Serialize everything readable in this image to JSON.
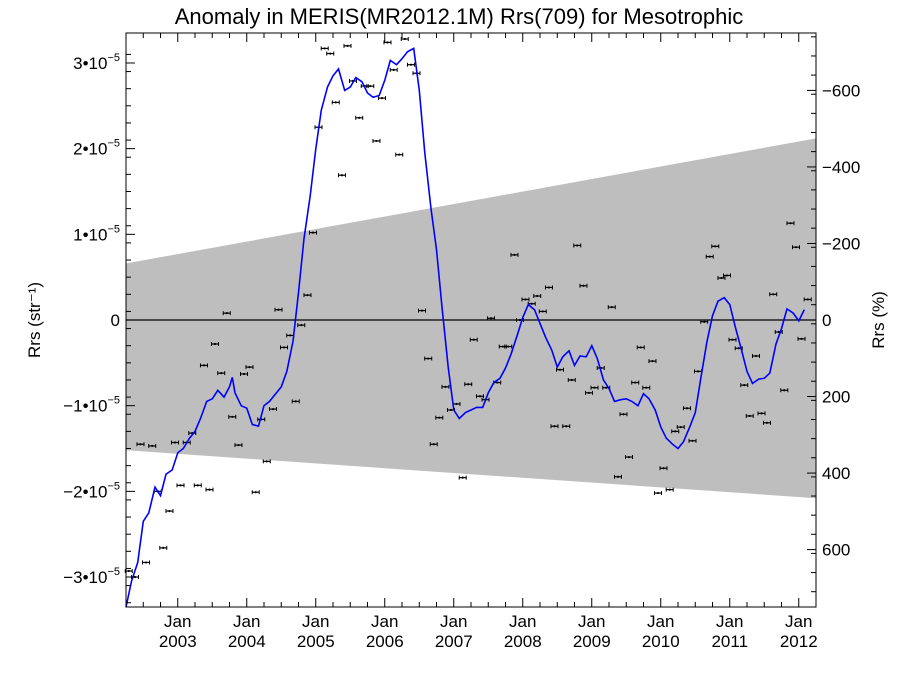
{
  "chart_data": {
    "type": "line",
    "title": "Anomaly in MERIS(MR2012.1M) Rrs(709) for Mesotrophic",
    "ylabel_left": "Rrs (str⁻¹)",
    "ylabel_right": "Rrs (%)",
    "x_range": [
      2002.25,
      2012.25
    ],
    "y_range": [
      -3.35e-05,
      3.35e-05
    ],
    "y_right_range": [
      750,
      -750
    ],
    "y_ticks": [
      {
        "value": -3e-05,
        "mant": "−3",
        "exp": "−5"
      },
      {
        "value": -2e-05,
        "mant": "−2",
        "exp": "−5"
      },
      {
        "value": -1e-05,
        "mant": "−1",
        "exp": "−5"
      },
      {
        "value": 0,
        "mant": "0",
        "exp": ""
      },
      {
        "value": 1e-05,
        "mant": "1",
        "exp": "−5"
      },
      {
        "value": 2e-05,
        "mant": "2",
        "exp": "−5"
      },
      {
        "value": 3e-05,
        "mant": "3",
        "exp": "−5"
      }
    ],
    "y_right_ticks": [
      {
        "value": 600,
        "label": "600"
      },
      {
        "value": 400,
        "label": "400"
      },
      {
        "value": 200,
        "label": "200"
      },
      {
        "value": 0,
        "label": "0"
      },
      {
        "value": -200,
        "label": "−200"
      },
      {
        "value": -400,
        "label": "−400"
      },
      {
        "value": -600,
        "label": "−600"
      }
    ],
    "x_ticks": [
      {
        "value": 2003.0,
        "month": "Jan",
        "year": "2003"
      },
      {
        "value": 2004.0,
        "month": "Jan",
        "year": "2004"
      },
      {
        "value": 2005.0,
        "month": "Jan",
        "year": "2005"
      },
      {
        "value": 2006.0,
        "month": "Jan",
        "year": "2006"
      },
      {
        "value": 2007.0,
        "month": "Jan",
        "year": "2007"
      },
      {
        "value": 2008.0,
        "month": "Jan",
        "year": "2008"
      },
      {
        "value": 2009.0,
        "month": "Jan",
        "year": "2009"
      },
      {
        "value": 2010.0,
        "month": "Jan",
        "year": "2010"
      },
      {
        "value": 2011.0,
        "month": "Jan",
        "year": "2011"
      },
      {
        "value": 2012.0,
        "month": "Jan",
        "year": "2012"
      }
    ],
    "band": {
      "upper": [
        [
          2002.25,
          6.6e-06
        ],
        [
          2012.25,
          2.12e-05
        ]
      ],
      "lower": [
        [
          2002.25,
          -1.52e-05
        ],
        [
          2012.25,
          -2.08e-05
        ]
      ],
      "color": "#bebebe"
    },
    "zero_line": 0,
    "series": [
      {
        "kind": "points_with_errorbars",
        "color": "#000000",
        "points": [
          [
            2002.29,
            -2.93e-05
          ],
          [
            2002.38,
            -3e-05
          ],
          [
            2002.46,
            -1.45e-05
          ],
          [
            2002.54,
            -2.83e-05
          ],
          [
            2002.63,
            -1.47e-05
          ],
          [
            2002.71,
            -2e-05
          ],
          [
            2002.79,
            -2.66e-05
          ],
          [
            2002.88,
            -2.23e-05
          ],
          [
            2002.96,
            -1.43e-05
          ],
          [
            2003.04,
            -1.93e-05
          ],
          [
            2003.13,
            -1.43e-05
          ],
          [
            2003.21,
            -1.32e-05
          ],
          [
            2003.29,
            -1.93e-05
          ],
          [
            2003.38,
            -5.3e-06
          ],
          [
            2003.46,
            -1.98e-05
          ],
          [
            2003.54,
            -2.8e-06
          ],
          [
            2003.63,
            -6.2e-06
          ],
          [
            2003.71,
            8e-07
          ],
          [
            2003.79,
            -1.13e-05
          ],
          [
            2003.88,
            -1.46e-05
          ],
          [
            2003.96,
            -6.3e-06
          ],
          [
            2004.04,
            -5.5e-06
          ],
          [
            2004.13,
            -2.01e-05
          ],
          [
            2004.21,
            -1.16e-05
          ],
          [
            2004.29,
            -1.65e-05
          ],
          [
            2004.38,
            -1.04e-05
          ],
          [
            2004.46,
            1.2e-06
          ],
          [
            2004.54,
            -3.2e-06
          ],
          [
            2004.63,
            -1.8e-06
          ],
          [
            2004.71,
            -9.5e-06
          ],
          [
            2004.79,
            -6e-07
          ],
          [
            2004.88,
            2.9e-06
          ],
          [
            2004.96,
            1.02e-05
          ],
          [
            2005.04,
            2.25e-05
          ],
          [
            2005.13,
            3.17e-05
          ],
          [
            2005.21,
            3.11e-05
          ],
          [
            2005.29,
            2.54e-05
          ],
          [
            2005.38,
            1.69e-05
          ],
          [
            2005.46,
            3.2e-05
          ],
          [
            2005.54,
            2.79e-05
          ],
          [
            2005.63,
            2.36e-05
          ],
          [
            2005.71,
            2.73e-05
          ],
          [
            2005.79,
            2.73e-05
          ],
          [
            2005.88,
            2.09e-05
          ],
          [
            2005.96,
            2.59e-05
          ],
          [
            2006.04,
            3.24e-05
          ],
          [
            2006.13,
            2.92e-05
          ],
          [
            2006.21,
            1.93e-05
          ],
          [
            2006.29,
            3.28e-05
          ],
          [
            2006.38,
            2.98e-05
          ],
          [
            2006.46,
            2.88e-05
          ],
          [
            2006.54,
            1.1e-06
          ],
          [
            2006.63,
            -4.5e-06
          ],
          [
            2006.71,
            -1.45e-05
          ],
          [
            2006.79,
            -1.14e-05
          ],
          [
            2006.88,
            -7.8e-06
          ],
          [
            2006.96,
            -1.05e-05
          ],
          [
            2007.04,
            -9.8e-06
          ],
          [
            2007.13,
            -1.84e-05
          ],
          [
            2007.21,
            -7.5e-06
          ],
          [
            2007.29,
            -2.3e-06
          ],
          [
            2007.38,
            -8.9e-06
          ],
          [
            2007.46,
            -9.3e-06
          ],
          [
            2007.54,
            2e-07
          ],
          [
            2007.63,
            -7.3e-06
          ],
          [
            2007.71,
            -3.1e-06
          ],
          [
            2007.79,
            -3.1e-06
          ],
          [
            2007.88,
            7.6e-06
          ],
          [
            2007.96,
            0
          ],
          [
            2008.04,
            2.4e-06
          ],
          [
            2008.13,
            1.9e-06
          ],
          [
            2008.21,
            2.8e-06
          ],
          [
            2008.29,
            1e-06
          ],
          [
            2008.38,
            3.8e-06
          ],
          [
            2008.46,
            -1.24e-05
          ],
          [
            2008.54,
            -5.8e-06
          ],
          [
            2008.63,
            -1.24e-05
          ],
          [
            2008.71,
            -7e-06
          ],
          [
            2008.79,
            8.7e-06
          ],
          [
            2008.88,
            4e-06
          ],
          [
            2008.96,
            -8.5e-06
          ],
          [
            2009.04,
            -7.9e-06
          ],
          [
            2009.13,
            -5.6e-06
          ],
          [
            2009.21,
            -7.9e-06
          ],
          [
            2009.29,
            1.5e-06
          ],
          [
            2009.38,
            -1.83e-05
          ],
          [
            2009.46,
            -1.1e-05
          ],
          [
            2009.54,
            -1.6e-05
          ],
          [
            2009.63,
            -7.3e-06
          ],
          [
            2009.71,
            -3.2e-06
          ],
          [
            2009.79,
            -7.9e-06
          ],
          [
            2009.88,
            -4.8e-06
          ],
          [
            2009.96,
            -2.02e-05
          ],
          [
            2010.04,
            -1.73e-05
          ],
          [
            2010.13,
            -1.98e-05
          ],
          [
            2010.21,
            -1.3e-05
          ],
          [
            2010.29,
            -1.25e-05
          ],
          [
            2010.38,
            -1.03e-05
          ],
          [
            2010.46,
            -1.41e-05
          ],
          [
            2010.54,
            -6e-06
          ],
          [
            2010.63,
            -2e-07
          ],
          [
            2010.71,
            7.4e-06
          ],
          [
            2010.79,
            8.6e-06
          ],
          [
            2010.88,
            4.9e-06
          ],
          [
            2010.96,
            5.2e-06
          ],
          [
            2011.04,
            -2.3e-06
          ],
          [
            2011.13,
            -3.3e-06
          ],
          [
            2011.21,
            -7.6e-06
          ],
          [
            2011.29,
            -1.12e-05
          ],
          [
            2011.38,
            -4.2e-06
          ],
          [
            2011.46,
            -1.09e-05
          ],
          [
            2011.54,
            -1.2e-05
          ],
          [
            2011.63,
            3e-06
          ],
          [
            2011.71,
            -1.4e-06
          ],
          [
            2011.79,
            -8.2e-06
          ],
          [
            2011.88,
            1.13e-05
          ],
          [
            2011.96,
            8.5e-06
          ],
          [
            2012.04,
            -2.2e-06
          ],
          [
            2012.13,
            2.4e-06
          ]
        ]
      },
      {
        "kind": "line",
        "color": "#0000ff",
        "points": [
          [
            2002.25,
            -3.35e-05
          ],
          [
            2002.33,
            -3.05e-05
          ],
          [
            2002.42,
            -2.83e-05
          ],
          [
            2002.5,
            -2.35e-05
          ],
          [
            2002.58,
            -2.25e-05
          ],
          [
            2002.67,
            -1.95e-05
          ],
          [
            2002.75,
            -2.05e-05
          ],
          [
            2002.83,
            -1.8e-05
          ],
          [
            2002.92,
            -1.75e-05
          ],
          [
            2003.0,
            -1.55e-05
          ],
          [
            2003.08,
            -1.5e-05
          ],
          [
            2003.17,
            -1.38e-05
          ],
          [
            2003.25,
            -1.3e-05
          ],
          [
            2003.33,
            -1.15e-05
          ],
          [
            2003.42,
            -9.5e-06
          ],
          [
            2003.5,
            -9.2e-06
          ],
          [
            2003.58,
            -8.2e-06
          ],
          [
            2003.67,
            -9e-06
          ],
          [
            2003.75,
            -7.8e-06
          ],
          [
            2003.79,
            -6.7e-06
          ],
          [
            2003.83,
            -8.5e-06
          ],
          [
            2003.92,
            -1e-05
          ],
          [
            2004.0,
            -1.03e-05
          ],
          [
            2004.08,
            -1.22e-05
          ],
          [
            2004.17,
            -1.24e-05
          ],
          [
            2004.25,
            -1e-05
          ],
          [
            2004.33,
            -9.5e-06
          ],
          [
            2004.42,
            -8.6e-06
          ],
          [
            2004.5,
            -7.8e-06
          ],
          [
            2004.58,
            -6e-06
          ],
          [
            2004.67,
            -2.5e-06
          ],
          [
            2004.75,
            3.2e-06
          ],
          [
            2004.83,
            9.5e-06
          ],
          [
            2004.92,
            1.45e-05
          ],
          [
            2005.0,
            2e-05
          ],
          [
            2005.08,
            2.45e-05
          ],
          [
            2005.17,
            2.72e-05
          ],
          [
            2005.25,
            2.85e-05
          ],
          [
            2005.33,
            2.93e-05
          ],
          [
            2005.42,
            2.68e-05
          ],
          [
            2005.5,
            2.72e-05
          ],
          [
            2005.58,
            2.83e-05
          ],
          [
            2005.67,
            2.78e-05
          ],
          [
            2005.75,
            2.65e-05
          ],
          [
            2005.83,
            2.6e-05
          ],
          [
            2005.92,
            2.62e-05
          ],
          [
            2006.0,
            2.8e-05
          ],
          [
            2006.08,
            3.03e-05
          ],
          [
            2006.17,
            2.98e-05
          ],
          [
            2006.25,
            3.05e-05
          ],
          [
            2006.33,
            3.13e-05
          ],
          [
            2006.42,
            3.17e-05
          ],
          [
            2006.5,
            2.68e-05
          ],
          [
            2006.58,
            1.95e-05
          ],
          [
            2006.67,
            1.3e-05
          ],
          [
            2006.75,
            8.2e-06
          ],
          [
            2006.83,
            1.5e-06
          ],
          [
            2006.92,
            -5.5e-06
          ],
          [
            2007.0,
            -1.05e-05
          ],
          [
            2007.08,
            -1.15e-05
          ],
          [
            2007.17,
            -1.08e-05
          ],
          [
            2007.25,
            -1.05e-05
          ],
          [
            2007.33,
            -1.02e-05
          ],
          [
            2007.42,
            -1.02e-05
          ],
          [
            2007.5,
            -8.5e-06
          ],
          [
            2007.58,
            -7.3e-06
          ],
          [
            2007.67,
            -6.8e-06
          ],
          [
            2007.75,
            -5.6e-06
          ],
          [
            2007.83,
            -4e-06
          ],
          [
            2007.92,
            -1.8e-06
          ],
          [
            2008.0,
            3e-07
          ],
          [
            2008.08,
            1.8e-06
          ],
          [
            2008.17,
            1.2e-06
          ],
          [
            2008.25,
            -4e-07
          ],
          [
            2008.33,
            -2e-06
          ],
          [
            2008.42,
            -3.5e-06
          ],
          [
            2008.5,
            -5.5e-06
          ],
          [
            2008.58,
            -4.3e-06
          ],
          [
            2008.67,
            -3.6e-06
          ],
          [
            2008.75,
            -5.3e-06
          ],
          [
            2008.83,
            -4.2e-06
          ],
          [
            2008.92,
            -4.3e-06
          ],
          [
            2009.0,
            -3e-06
          ],
          [
            2009.08,
            -4.5e-06
          ],
          [
            2009.17,
            -7e-06
          ],
          [
            2009.25,
            -8e-06
          ],
          [
            2009.33,
            -9.5e-06
          ],
          [
            2009.42,
            -9.3e-06
          ],
          [
            2009.5,
            -9.2e-06
          ],
          [
            2009.58,
            -9.5e-06
          ],
          [
            2009.67,
            -1e-05
          ],
          [
            2009.75,
            -8.6e-06
          ],
          [
            2009.83,
            -9.2e-06
          ],
          [
            2009.92,
            -1.05e-05
          ],
          [
            2010.0,
            -1.25e-05
          ],
          [
            2010.08,
            -1.38e-05
          ],
          [
            2010.17,
            -1.45e-05
          ],
          [
            2010.25,
            -1.5e-05
          ],
          [
            2010.33,
            -1.42e-05
          ],
          [
            2010.42,
            -1.25e-05
          ],
          [
            2010.5,
            -1.08e-05
          ],
          [
            2010.58,
            -6.8e-06
          ],
          [
            2010.67,
            -2.5e-06
          ],
          [
            2010.75,
            5e-07
          ],
          [
            2010.83,
            2.2e-06
          ],
          [
            2010.92,
            2.6e-06
          ],
          [
            2011.0,
            1.8e-06
          ],
          [
            2011.08,
            -8e-07
          ],
          [
            2011.17,
            -3.5e-06
          ],
          [
            2011.25,
            -6e-06
          ],
          [
            2011.33,
            -7.4e-06
          ],
          [
            2011.42,
            -6.9e-06
          ],
          [
            2011.5,
            -6.8e-06
          ],
          [
            2011.58,
            -6.2e-06
          ],
          [
            2011.67,
            -2.8e-06
          ],
          [
            2011.75,
            -1e-06
          ],
          [
            2011.83,
            1.3e-06
          ],
          [
            2011.92,
            8e-07
          ],
          [
            2012.0,
            -1e-07
          ],
          [
            2012.08,
            1.2e-06
          ]
        ]
      }
    ]
  }
}
